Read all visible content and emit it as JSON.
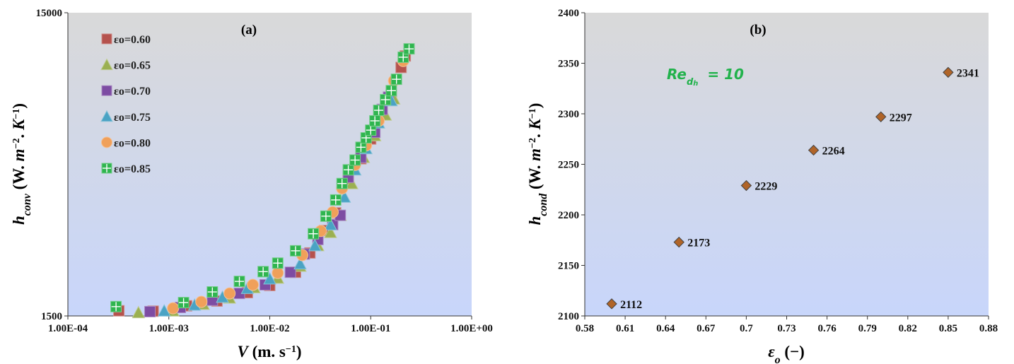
{
  "chart_data": [
    {
      "type": "scatter",
      "panel_label": "(a)",
      "xscale": "log",
      "yscale": "log",
      "xlim": [
        0.0001,
        1
      ],
      "ylim": [
        1500,
        15000
      ],
      "xticks": [
        "1.00E-04",
        "1.00E-03",
        "1.00E-02",
        "1.00E-01",
        "1.00E+00"
      ],
      "yticks": [
        "15000",
        "1500"
      ],
      "xlabel": "V (m. s⁻¹)",
      "ylabel": "h_conv (W. m⁻². K⁻¹)",
      "legend_position": "top-left",
      "grid": false,
      "series": [
        {
          "name": "εo=0.60",
          "marker": "square",
          "color": "#b5524d",
          "points": [
            [
              0.00032,
              1560
            ],
            [
              0.0007,
              1555
            ],
            [
              0.0015,
              1620
            ],
            [
              0.003,
              1680
            ],
            [
              0.006,
              1790
            ],
            [
              0.01,
              1890
            ],
            [
              0.018,
              2090
            ],
            [
              0.025,
              2420
            ],
            [
              0.035,
              2870
            ],
            [
              0.045,
              3280
            ],
            [
              0.06,
              4200
            ],
            [
              0.08,
              4950
            ],
            [
              0.1,
              5750
            ],
            [
              0.13,
              6950
            ],
            [
              0.16,
              8050
            ],
            [
              0.2,
              9900
            ],
            [
              0.22,
              10800
            ]
          ]
        },
        {
          "name": "εo=0.65",
          "marker": "triangle",
          "color": "#9bb052",
          "points": [
            [
              0.0005,
              1540
            ],
            [
              0.0011,
              1560
            ],
            [
              0.0022,
              1640
            ],
            [
              0.004,
              1720
            ],
            [
              0.007,
              1860
            ],
            [
              0.012,
              2000
            ],
            [
              0.02,
              2190
            ],
            [
              0.03,
              2560
            ],
            [
              0.04,
              2830
            ],
            [
              0.05,
              3220
            ],
            [
              0.065,
              4100
            ],
            [
              0.085,
              5000
            ],
            [
              0.11,
              5900
            ],
            [
              0.14,
              6900
            ],
            [
              0.17,
              7800
            ]
          ]
        },
        {
          "name": "εo=0.70",
          "marker": "square",
          "color": "#7d4ca3",
          "points": [
            [
              0.00065,
              1550
            ],
            [
              0.0013,
              1600
            ],
            [
              0.0027,
              1690
            ],
            [
              0.005,
              1780
            ],
            [
              0.009,
              1900
            ],
            [
              0.016,
              2090
            ],
            [
              0.022,
              2400
            ],
            [
              0.03,
              2680
            ],
            [
              0.042,
              3000
            ],
            [
              0.05,
              3220
            ],
            [
              0.06,
              4300
            ],
            [
              0.08,
              5000
            ],
            [
              0.11,
              6050
            ],
            [
              0.13,
              7200
            ],
            [
              0.15,
              7900
            ]
          ]
        },
        {
          "name": "εo=0.75",
          "marker": "triangle",
          "color": "#4aa3c4",
          "points": [
            [
              0.0009,
              1560
            ],
            [
              0.0018,
              1630
            ],
            [
              0.0034,
              1730
            ],
            [
              0.006,
              1850
            ],
            [
              0.01,
              1990
            ],
            [
              0.02,
              2230
            ],
            [
              0.028,
              2560
            ],
            [
              0.04,
              3000
            ],
            [
              0.055,
              3700
            ],
            [
              0.07,
              4550
            ],
            [
              0.09,
              5350
            ],
            [
              0.12,
              6500
            ],
            [
              0.16,
              7700
            ]
          ]
        },
        {
          "name": "εo=0.80",
          "marker": "circle",
          "color": "#f0a05a",
          "points": [
            [
              0.0011,
              1590
            ],
            [
              0.0021,
              1670
            ],
            [
              0.004,
              1780
            ],
            [
              0.0068,
              1900
            ],
            [
              0.012,
              2080
            ],
            [
              0.021,
              2380
            ],
            [
              0.032,
              2860
            ],
            [
              0.042,
              3300
            ],
            [
              0.052,
              3950
            ],
            [
              0.07,
              4720
            ],
            [
              0.09,
              5480
            ],
            [
              0.12,
              6600
            ],
            [
              0.17,
              8950
            ],
            [
              0.21,
              10400
            ]
          ]
        },
        {
          "name": "εo=0.85",
          "marker": "square-cross",
          "color": "#2fb54f",
          "points": [
            [
              0.0003,
              1610
            ],
            [
              0.0014,
              1660
            ],
            [
              0.0027,
              1800
            ],
            [
              0.005,
              1950
            ],
            [
              0.0086,
              2100
            ],
            [
              0.012,
              2240
            ],
            [
              0.018,
              2460
            ],
            [
              0.027,
              2800
            ],
            [
              0.036,
              3200
            ],
            [
              0.045,
              3620
            ],
            [
              0.052,
              4100
            ],
            [
              0.06,
              4550
            ],
            [
              0.07,
              4900
            ],
            [
              0.08,
              5400
            ],
            [
              0.09,
              5800
            ],
            [
              0.1,
              6150
            ],
            [
              0.11,
              6600
            ],
            [
              0.12,
              7150
            ],
            [
              0.14,
              7750
            ],
            [
              0.16,
              8300
            ],
            [
              0.18,
              9050
            ],
            [
              0.21,
              10700
            ],
            [
              0.24,
              11400
            ]
          ]
        }
      ]
    },
    {
      "type": "scatter",
      "panel_label": "(b)",
      "xlim": [
        0.58,
        0.88
      ],
      "ylim": [
        2100,
        2400
      ],
      "xticks": [
        "0.58",
        "0.61",
        "0.64",
        "0.67",
        "0.7",
        "0.73",
        "0.76",
        "0.79",
        "0.82",
        "0.85",
        "0.88"
      ],
      "yticks": [
        "2100",
        "2150",
        "2200",
        "2250",
        "2300",
        "2350",
        "2400"
      ],
      "xlabel": "εo (−)",
      "ylabel": "h_cond (W. m⁻². K⁻¹)",
      "annotation": "Re_dh = 10",
      "annotation_color": "#22b24c",
      "marker": "diamond",
      "marker_color": "#b06428",
      "grid": false,
      "x": [
        0.6,
        0.65,
        0.7,
        0.75,
        0.8,
        0.85
      ],
      "y": [
        2112,
        2173,
        2229,
        2264,
        2297,
        2341
      ],
      "data_labels": [
        "2112",
        "2173",
        "2229",
        "2264",
        "2297",
        "2341"
      ]
    }
  ]
}
